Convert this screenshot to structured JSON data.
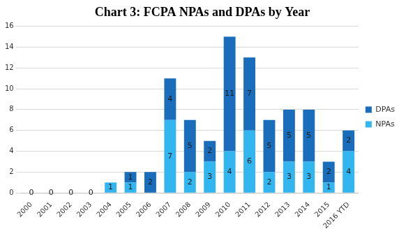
{
  "chart_data": {
    "type": "bar",
    "title": "Chart 3: FCPA NPAs and DPAs by Year",
    "categories": [
      "2000",
      "2001",
      "2002",
      "2003",
      "2004",
      "2005",
      "2006",
      "2007",
      "2008",
      "2009",
      "2010",
      "2011",
      "2012",
      "2013",
      "2014",
      "2015",
      "2016 YTD"
    ],
    "series": [
      {
        "name": "NPAs",
        "color": "#33b5ef",
        "values": [
          0,
          0,
          0,
          0,
          1,
          1,
          null,
          7,
          2,
          3,
          4,
          6,
          2,
          3,
          3,
          1,
          4
        ]
      },
      {
        "name": "DPAs",
        "color": "#1a6dbb",
        "values": [
          null,
          null,
          null,
          null,
          null,
          1,
          2,
          4,
          5,
          2,
          11,
          7,
          5,
          5,
          5,
          2,
          2
        ]
      }
    ],
    "stacked": true,
    "data_labels": true,
    "legend": "right",
    "grid": true,
    "ylim": [
      0,
      16
    ],
    "yticks": [
      0,
      2,
      4,
      6,
      8,
      10,
      12,
      14,
      16
    ]
  }
}
